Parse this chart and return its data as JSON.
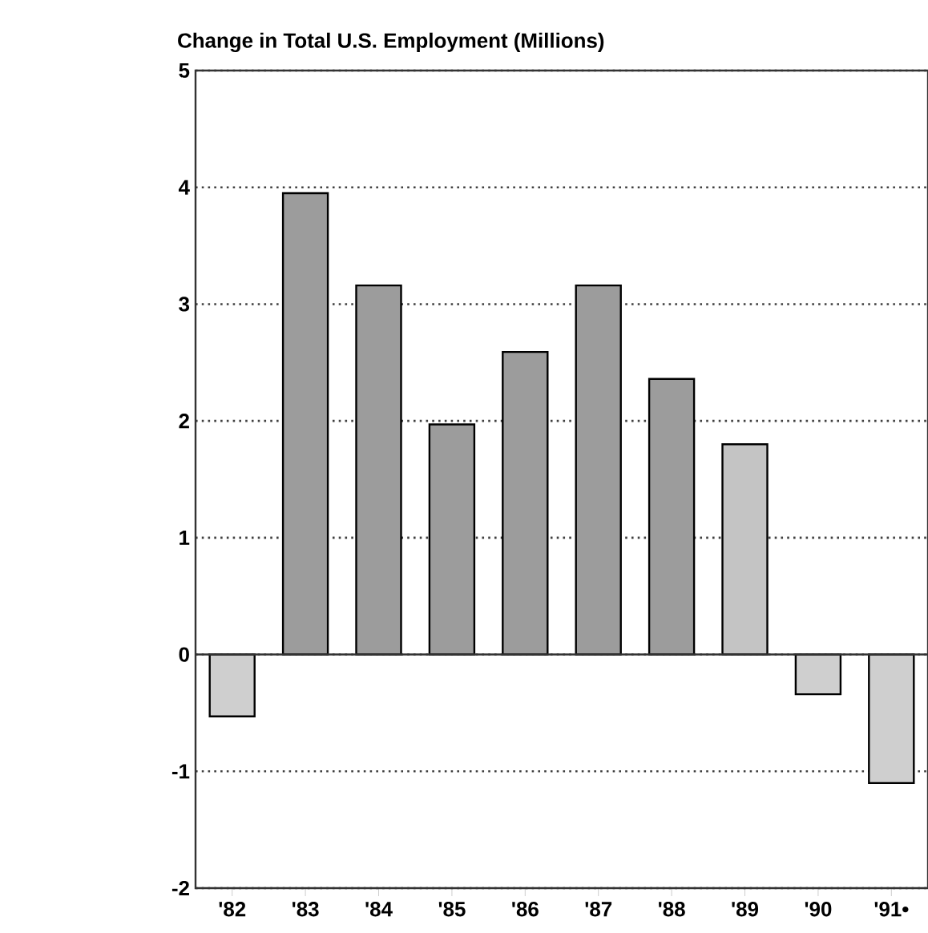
{
  "chart_data": {
    "type": "bar",
    "title": "Change in Total U.S. Employment (Millions)",
    "categories": [
      "'82",
      "'83",
      "'84",
      "'85",
      "'86",
      "'87",
      "'88",
      "'89",
      "'90",
      "'91•"
    ],
    "values": [
      -0.53,
      3.95,
      3.16,
      1.97,
      2.59,
      3.16,
      2.36,
      1.8,
      -0.34,
      -1.1
    ],
    "colors": [
      "#cfcfcf",
      "#9c9c9c",
      "#9c9c9c",
      "#9c9c9c",
      "#9c9c9c",
      "#9c9c9c",
      "#9c9c9c",
      "#c4c4c4",
      "#cfcfcf",
      "#cfcfcf"
    ],
    "ref_lines": [
      {
        "axis": "y",
        "value": 0,
        "color": "#333333",
        "line_style": "solid"
      }
    ],
    "ylim": [
      -2,
      5
    ],
    "yticks": [
      -2,
      -1,
      0,
      1,
      2,
      3,
      4,
      5
    ],
    "grid": "y"
  }
}
